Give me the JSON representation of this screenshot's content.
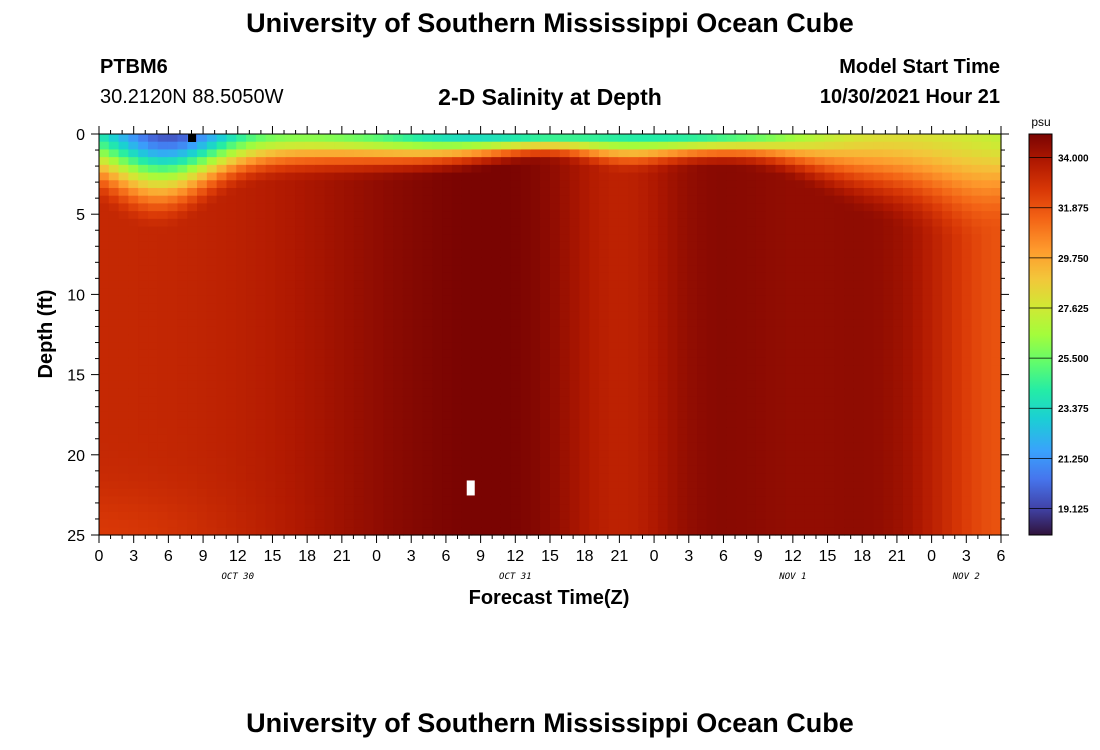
{
  "header": {
    "title": "University of Southern Mississippi Ocean Cube",
    "station": "PTBM6",
    "coordinates": "30.2120N  88.5050W",
    "plot_title": "2-D Salinity at Depth",
    "model_start_label": "Model Start Time",
    "model_start_value": "10/30/2021 Hour 21"
  },
  "footer": {
    "title": "University of Southern Mississippi Ocean Cube"
  },
  "chart_data": {
    "type": "heatmap",
    "title": "2-D Salinity at Depth",
    "xlabel": "Forecast Time(Z)",
    "ylabel": "Depth (ft)",
    "x_range_hours": [
      0,
      78
    ],
    "ylim": [
      0,
      25
    ],
    "y_ticks": [
      "0",
      "5",
      "10",
      "15",
      "20",
      "25"
    ],
    "x_ticks": [
      "0",
      "3",
      "6",
      "9",
      "12",
      "15",
      "18",
      "21",
      "0",
      "3",
      "6",
      "9",
      "12",
      "15",
      "18",
      "21",
      "0",
      "3",
      "6",
      "9",
      "12",
      "15",
      "18",
      "21",
      "0",
      "3",
      "6"
    ],
    "dates": [
      {
        "label": "OCT 30",
        "hour": 12
      },
      {
        "label": "OCT 31",
        "hour": 36
      },
      {
        "label": "NOV 1",
        "hour": 60
      },
      {
        "label": "NOV 2",
        "hour": 75
      }
    ],
    "colorbar": {
      "unit": "psu",
      "range": [
        18.0,
        35.0
      ],
      "labels": [
        "34.000",
        "31.875",
        "29.750",
        "27.625",
        "25.500",
        "23.375",
        "21.250",
        "19.125"
      ]
    },
    "field_notes": "Fresh surface plume (about 18-21 psu) near hours 3-10; saline core (about 34-35 psu) at depth through most of the forecast."
  }
}
